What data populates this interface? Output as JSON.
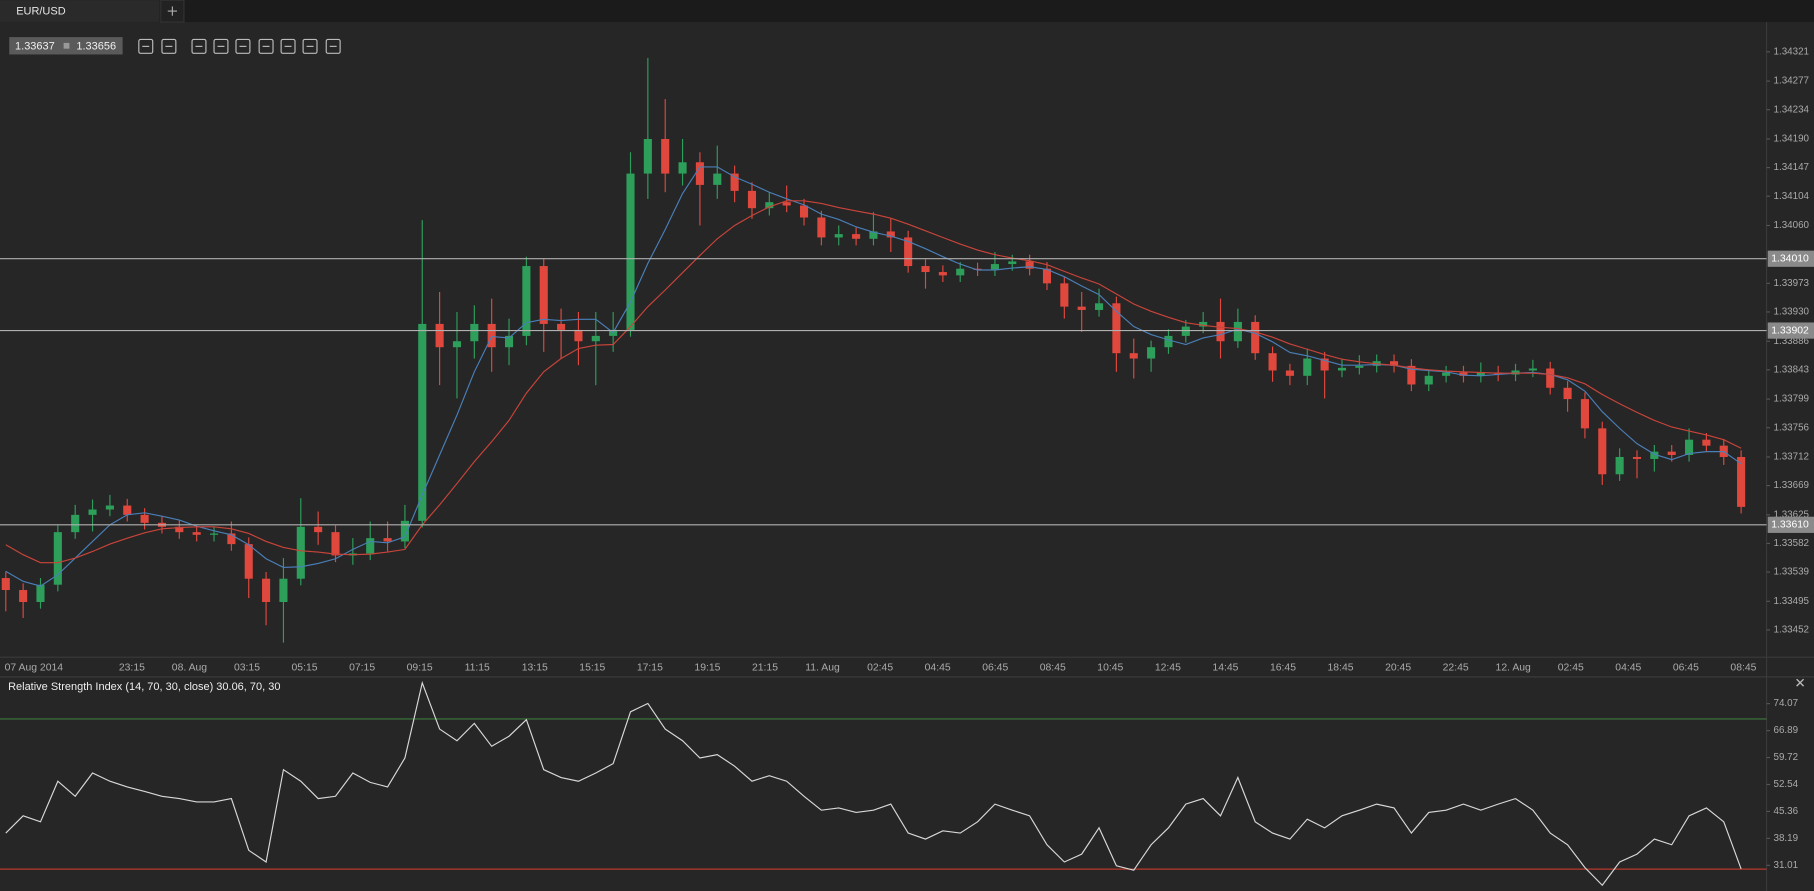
{
  "chart_data": [
    {
      "type": "candlestick",
      "title": "EUR/USD",
      "bid": "1.33637",
      "ask": "1.33656",
      "x_labels": [
        "07 Aug 2014",
        "23:15",
        "08. Aug",
        "03:15",
        "05:15",
        "07:15",
        "09:15",
        "11:15",
        "13:15",
        "15:15",
        "17:15",
        "19:15",
        "21:15",
        "11. Aug",
        "02:45",
        "04:45",
        "06:45",
        "08:45",
        "10:45",
        "12:45",
        "14:45",
        "16:45",
        "18:45",
        "20:45",
        "22:45",
        "12. Aug",
        "02:45",
        "04:45",
        "06:45",
        "08:45"
      ],
      "open": [
        1.3353,
        1.33512,
        1.33494,
        1.3352,
        1.33599,
        1.33625,
        1.33633,
        1.33639,
        1.33625,
        1.33613,
        1.33607,
        1.33599,
        1.33595,
        1.33597,
        1.33581,
        1.33529,
        1.33494,
        1.33529,
        1.33607,
        1.33599,
        1.33564,
        1.33567,
        1.3359,
        1.33585,
        1.33616,
        1.33912,
        1.33877,
        1.33886,
        1.33912,
        1.33877,
        1.33894,
        1.33999,
        1.33912,
        1.33903,
        1.33886,
        1.33894,
        1.33903,
        1.34138,
        1.3419,
        1.34138,
        1.34155,
        1.34121,
        1.34138,
        1.34112,
        1.34086,
        1.34095,
        1.3409,
        1.34072,
        1.34042,
        1.34047,
        1.3404,
        1.34051,
        1.34042,
        1.33999,
        1.3399,
        1.33985,
        1.33995,
        1.33994,
        1.34002,
        1.34006,
        1.33995,
        1.33973,
        1.33938,
        1.33933,
        1.33943,
        1.33868,
        1.3386,
        1.33877,
        1.33894,
        1.33908,
        1.33915,
        1.33886,
        1.33915,
        1.33868,
        1.33842,
        1.33834,
        1.3386,
        1.33842,
        1.33846,
        1.33849,
        1.33856,
        1.33849,
        1.33821,
        1.33834,
        1.33839,
        1.33834,
        1.33839,
        1.33836,
        1.33842,
        1.33845,
        1.33816,
        1.33799,
        1.33755,
        1.33686,
        1.33712,
        1.33709,
        1.3372,
        1.33715,
        1.33738,
        1.33729,
        1.33712
      ],
      "high": [
        1.3354,
        1.33522,
        1.3353,
        1.33609,
        1.3364,
        1.33648,
        1.33655,
        1.33649,
        1.33635,
        1.33623,
        1.33617,
        1.33609,
        1.33607,
        1.33615,
        1.33591,
        1.33539,
        1.3356,
        1.3365,
        1.3363,
        1.33609,
        1.3359,
        1.33615,
        1.33615,
        1.3364,
        1.34068,
        1.3396,
        1.3393,
        1.3394,
        1.3395,
        1.3392,
        1.34013,
        1.3401,
        1.33935,
        1.3393,
        1.3393,
        1.3393,
        1.3417,
        1.34312,
        1.3425,
        1.3419,
        1.3417,
        1.3418,
        1.3415,
        1.34125,
        1.3411,
        1.3412,
        1.341,
        1.34082,
        1.3406,
        1.34057,
        1.3408,
        1.3407,
        1.34052,
        1.34009,
        1.34,
        1.34005,
        1.34004,
        1.3402,
        1.34016,
        1.34016,
        1.34005,
        1.33983,
        1.3396,
        1.33965,
        1.33953,
        1.3389,
        1.33887,
        1.33904,
        1.33918,
        1.3393,
        1.3395,
        1.33935,
        1.33925,
        1.33878,
        1.33852,
        1.33875,
        1.3387,
        1.3386,
        1.33865,
        1.33866,
        1.33866,
        1.33859,
        1.33844,
        1.33849,
        1.33849,
        1.33854,
        1.33849,
        1.33852,
        1.33858,
        1.33855,
        1.33826,
        1.33809,
        1.33765,
        1.33725,
        1.33722,
        1.3373,
        1.3373,
        1.33755,
        1.33748,
        1.33739,
        1.33722
      ],
      "low": [
        1.3348,
        1.3347,
        1.33484,
        1.3351,
        1.33589,
        1.336,
        1.33623,
        1.33615,
        1.33603,
        1.33597,
        1.33589,
        1.33585,
        1.33585,
        1.33571,
        1.335,
        1.33459,
        1.33433,
        1.33519,
        1.3358,
        1.33554,
        1.3355,
        1.33557,
        1.3357,
        1.33575,
        1.33606,
        1.3382,
        1.338,
        1.3386,
        1.3384,
        1.3385,
        1.3388,
        1.3387,
        1.3386,
        1.3385,
        1.3382,
        1.3387,
        1.33893,
        1.341,
        1.3411,
        1.3412,
        1.3406,
        1.341,
        1.34095,
        1.3407,
        1.34075,
        1.3408,
        1.3406,
        1.3403,
        1.3403,
        1.3403,
        1.3403,
        1.3402,
        1.33989,
        1.33965,
        1.33975,
        1.33975,
        1.33984,
        1.33984,
        1.33992,
        1.33985,
        1.33963,
        1.3392,
        1.339,
        1.33923,
        1.3384,
        1.3383,
        1.3384,
        1.33867,
        1.33884,
        1.33898,
        1.3386,
        1.33876,
        1.33858,
        1.33825,
        1.3382,
        1.3382,
        1.338,
        1.33832,
        1.33836,
        1.33839,
        1.33839,
        1.33811,
        1.33811,
        1.33824,
        1.33824,
        1.33824,
        1.33826,
        1.33826,
        1.33832,
        1.33806,
        1.3378,
        1.3374,
        1.3367,
        1.33676,
        1.3368,
        1.3369,
        1.33705,
        1.33705,
        1.33719,
        1.337,
        1.33627
      ],
      "close": [
        1.33512,
        1.33494,
        1.3352,
        1.33599,
        1.33625,
        1.33633,
        1.33639,
        1.33625,
        1.33613,
        1.33607,
        1.33599,
        1.33595,
        1.33597,
        1.33581,
        1.33529,
        1.33494,
        1.33529,
        1.33607,
        1.33599,
        1.33564,
        1.33567,
        1.3359,
        1.33585,
        1.33616,
        1.33912,
        1.33877,
        1.33886,
        1.33912,
        1.33877,
        1.33894,
        1.33999,
        1.33912,
        1.33903,
        1.33886,
        1.33894,
        1.33903,
        1.34138,
        1.3419,
        1.34138,
        1.34155,
        1.34121,
        1.34138,
        1.34112,
        1.34086,
        1.34095,
        1.3409,
        1.34072,
        1.34042,
        1.34047,
        1.3404,
        1.34051,
        1.34042,
        1.33999,
        1.3399,
        1.33985,
        1.33995,
        1.33994,
        1.34002,
        1.34006,
        1.33995,
        1.33973,
        1.33938,
        1.33933,
        1.33943,
        1.33868,
        1.3386,
        1.33877,
        1.33894,
        1.33908,
        1.33915,
        1.33886,
        1.33915,
        1.33868,
        1.33842,
        1.33834,
        1.3386,
        1.33842,
        1.33846,
        1.33849,
        1.33856,
        1.33849,
        1.33821,
        1.33834,
        1.33839,
        1.33834,
        1.33839,
        1.33836,
        1.33842,
        1.33845,
        1.33816,
        1.33799,
        1.33755,
        1.33686,
        1.33712,
        1.33709,
        1.3372,
        1.33715,
        1.33738,
        1.33729,
        1.33712,
        1.33637
      ],
      "up_color": "#2e9e5b",
      "down_color": "#e0483e",
      "series": [
        {
          "color": "#4a7fb8",
          "values": [
            1.3354,
            1.33525,
            1.33518,
            1.33535,
            1.3356,
            1.33585,
            1.3361,
            1.33625,
            1.33628,
            1.33623,
            1.33617,
            1.33608,
            1.33601,
            1.33595,
            1.3358,
            1.33559,
            1.33546,
            1.33547,
            1.33552,
            1.33559,
            1.33573,
            1.33585,
            1.33583,
            1.33592,
            1.33655,
            1.33715,
            1.33775,
            1.3384,
            1.33893,
            1.33891,
            1.33914,
            1.33919,
            1.33917,
            1.33919,
            1.33919,
            1.33899,
            1.33945,
            1.34003,
            1.34054,
            1.34108,
            1.34148,
            1.34148,
            1.34133,
            1.34122,
            1.3411,
            1.341,
            1.34091,
            1.34077,
            1.34069,
            1.34058,
            1.3405,
            1.34044,
            1.34036,
            1.34025,
            1.34013,
            1.34002,
            1.33993,
            1.33993,
            1.33996,
            1.33998,
            1.33994,
            1.33983,
            1.33969,
            1.33956,
            1.33931,
            1.33908,
            1.33896,
            1.33888,
            1.33881,
            1.33891,
            1.33896,
            1.33904,
            1.33898,
            1.33885,
            1.33869,
            1.33864,
            1.33857,
            1.3385,
            1.3385,
            1.33851,
            1.3385,
            1.33844,
            1.33842,
            1.3384,
            1.33835,
            1.33834,
            1.33836,
            1.33838,
            1.33839,
            1.33836,
            1.33828,
            1.33811,
            1.3378,
            1.33755,
            1.33732,
            1.33716,
            1.33708,
            1.33717,
            1.3372,
            1.3372,
            1.33702
          ]
        },
        {
          "color": "#c9443a",
          "values": [
            1.3358,
            1.33565,
            1.33553,
            1.33553,
            1.3356,
            1.3357,
            1.33581,
            1.3359,
            1.33598,
            1.33604,
            1.33606,
            1.33607,
            1.33607,
            1.33604,
            1.33597,
            1.33585,
            1.33576,
            1.33571,
            1.33569,
            1.33566,
            1.33565,
            1.33566,
            1.33569,
            1.33573,
            1.3361,
            1.3364,
            1.33672,
            1.33705,
            1.33735,
            1.33767,
            1.33808,
            1.3384,
            1.3386,
            1.33875,
            1.3388,
            1.33881,
            1.33908,
            1.33938,
            1.33963,
            1.33989,
            1.34015,
            1.3404,
            1.3406,
            1.34075,
            1.34088,
            1.34097,
            1.34097,
            1.34093,
            1.34087,
            1.34082,
            1.34077,
            1.34071,
            1.34062,
            1.34052,
            1.34042,
            1.34032,
            1.34023,
            1.34016,
            1.34011,
            1.34007,
            1.34001,
            1.33991,
            1.33981,
            1.33972,
            1.33957,
            1.33942,
            1.33931,
            1.33922,
            1.33914,
            1.3391,
            1.33907,
            1.33905,
            1.339,
            1.33892,
            1.33882,
            1.33874,
            1.33866,
            1.33859,
            1.33855,
            1.33852,
            1.3385,
            1.33846,
            1.33843,
            1.33841,
            1.3384,
            1.33839,
            1.33838,
            1.33838,
            1.33838,
            1.33836,
            1.33831,
            1.33822,
            1.33806,
            1.33792,
            1.33779,
            1.33767,
            1.33757,
            1.33751,
            1.33745,
            1.33738,
            1.33725
          ]
        }
      ],
      "levels": [
        {
          "value": 1.3401,
          "label": "1.34010"
        },
        1.33902,
        {
          "value": 1.3361,
          "label": "1.33610"
        }
      ],
      "ylim": [
        1.33411,
        1.34364
      ],
      "yticks": [
        1.33452,
        1.33495,
        1.33539,
        1.33582,
        1.33625,
        1.33669,
        1.33712,
        1.33756,
        1.33799,
        1.33843,
        1.33886,
        {
          "value": 1.3393,
          "label": "1.33930"
        },
        1.33973,
        {
          "value": 1.3406,
          "label": "1.34060"
        },
        1.34104,
        1.34147,
        {
          "value": 1.3419,
          "label": "1.34190"
        },
        1.34234,
        1.34277,
        1.34321
      ]
    },
    {
      "type": "line",
      "title": "Relative Strength Index (14, 70, 30, close) 30.06, 70, 30",
      "color": "#d8d8d8",
      "values": [
        39.6,
        44.2,
        42.6,
        53.4,
        49.4,
        55.6,
        53.4,
        51.9,
        50.7,
        49.4,
        48.8,
        47.9,
        47.9,
        48.8,
        35,
        31.9,
        56.5,
        53.4,
        48.8,
        49.4,
        55.6,
        53.1,
        51.9,
        59.6,
        79.6,
        67.3,
        64.2,
        68.8,
        62.7,
        65.4,
        69.8,
        56.5,
        54.4,
        53.4,
        55.6,
        58.1,
        71.9,
        74.1,
        67.3,
        64.2,
        59.6,
        60.5,
        57.4,
        53.4,
        54.9,
        53.4,
        49.4,
        45.7,
        46.3,
        45.1,
        45.7,
        47.3,
        39.6,
        38,
        40.2,
        39.6,
        42.6,
        47.3,
        45.7,
        44.2,
        36.5,
        31.9,
        34,
        41,
        30.9,
        29.7,
        36.5,
        41,
        47.3,
        48.8,
        44.2,
        54.4,
        42.6,
        39.6,
        38,
        43.3,
        41,
        44.2,
        45.7,
        47.3,
        46.3,
        39.6,
        45.1,
        45.7,
        47.3,
        45.7,
        47.3,
        48.8,
        45.7,
        39.6,
        36.5,
        30.4,
        25.7,
        31.9,
        34,
        38,
        36.5,
        44.2,
        46.3,
        42.6,
        30.06
      ],
      "levels": [
        {
          "value": 70,
          "color": "#3d7a3d"
        },
        {
          "value": 30,
          "color": "#b5392c"
        }
      ],
      "ylim": [
        24.2,
        81.2
      ],
      "yticks": [
        31.01,
        38.19,
        45.36,
        52.54,
        59.72,
        66.89,
        74.07
      ]
    }
  ]
}
